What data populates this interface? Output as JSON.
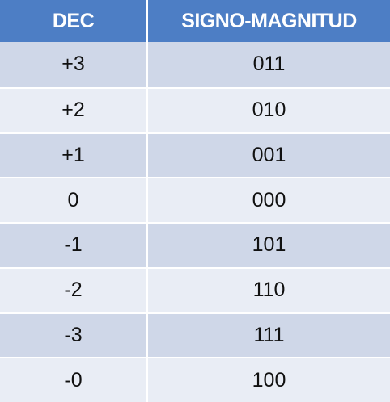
{
  "table": {
    "headers": [
      "DEC",
      "SIGNO-MAGNITUD"
    ],
    "rows": [
      {
        "dec": "+3",
        "sm": "011"
      },
      {
        "dec": "+2",
        "sm": "010"
      },
      {
        "dec": "+1",
        "sm": "001"
      },
      {
        "dec": "0",
        "sm": "000"
      },
      {
        "dec": "-1",
        "sm": "101"
      },
      {
        "dec": "-2",
        "sm": "110"
      },
      {
        "dec": "-3",
        "sm": "111"
      },
      {
        "dec": "-0",
        "sm": "100"
      }
    ]
  },
  "colors": {
    "header_bg": "#4d7ec5",
    "row_dark": "#cfd7e8",
    "row_light": "#e9edf5"
  }
}
